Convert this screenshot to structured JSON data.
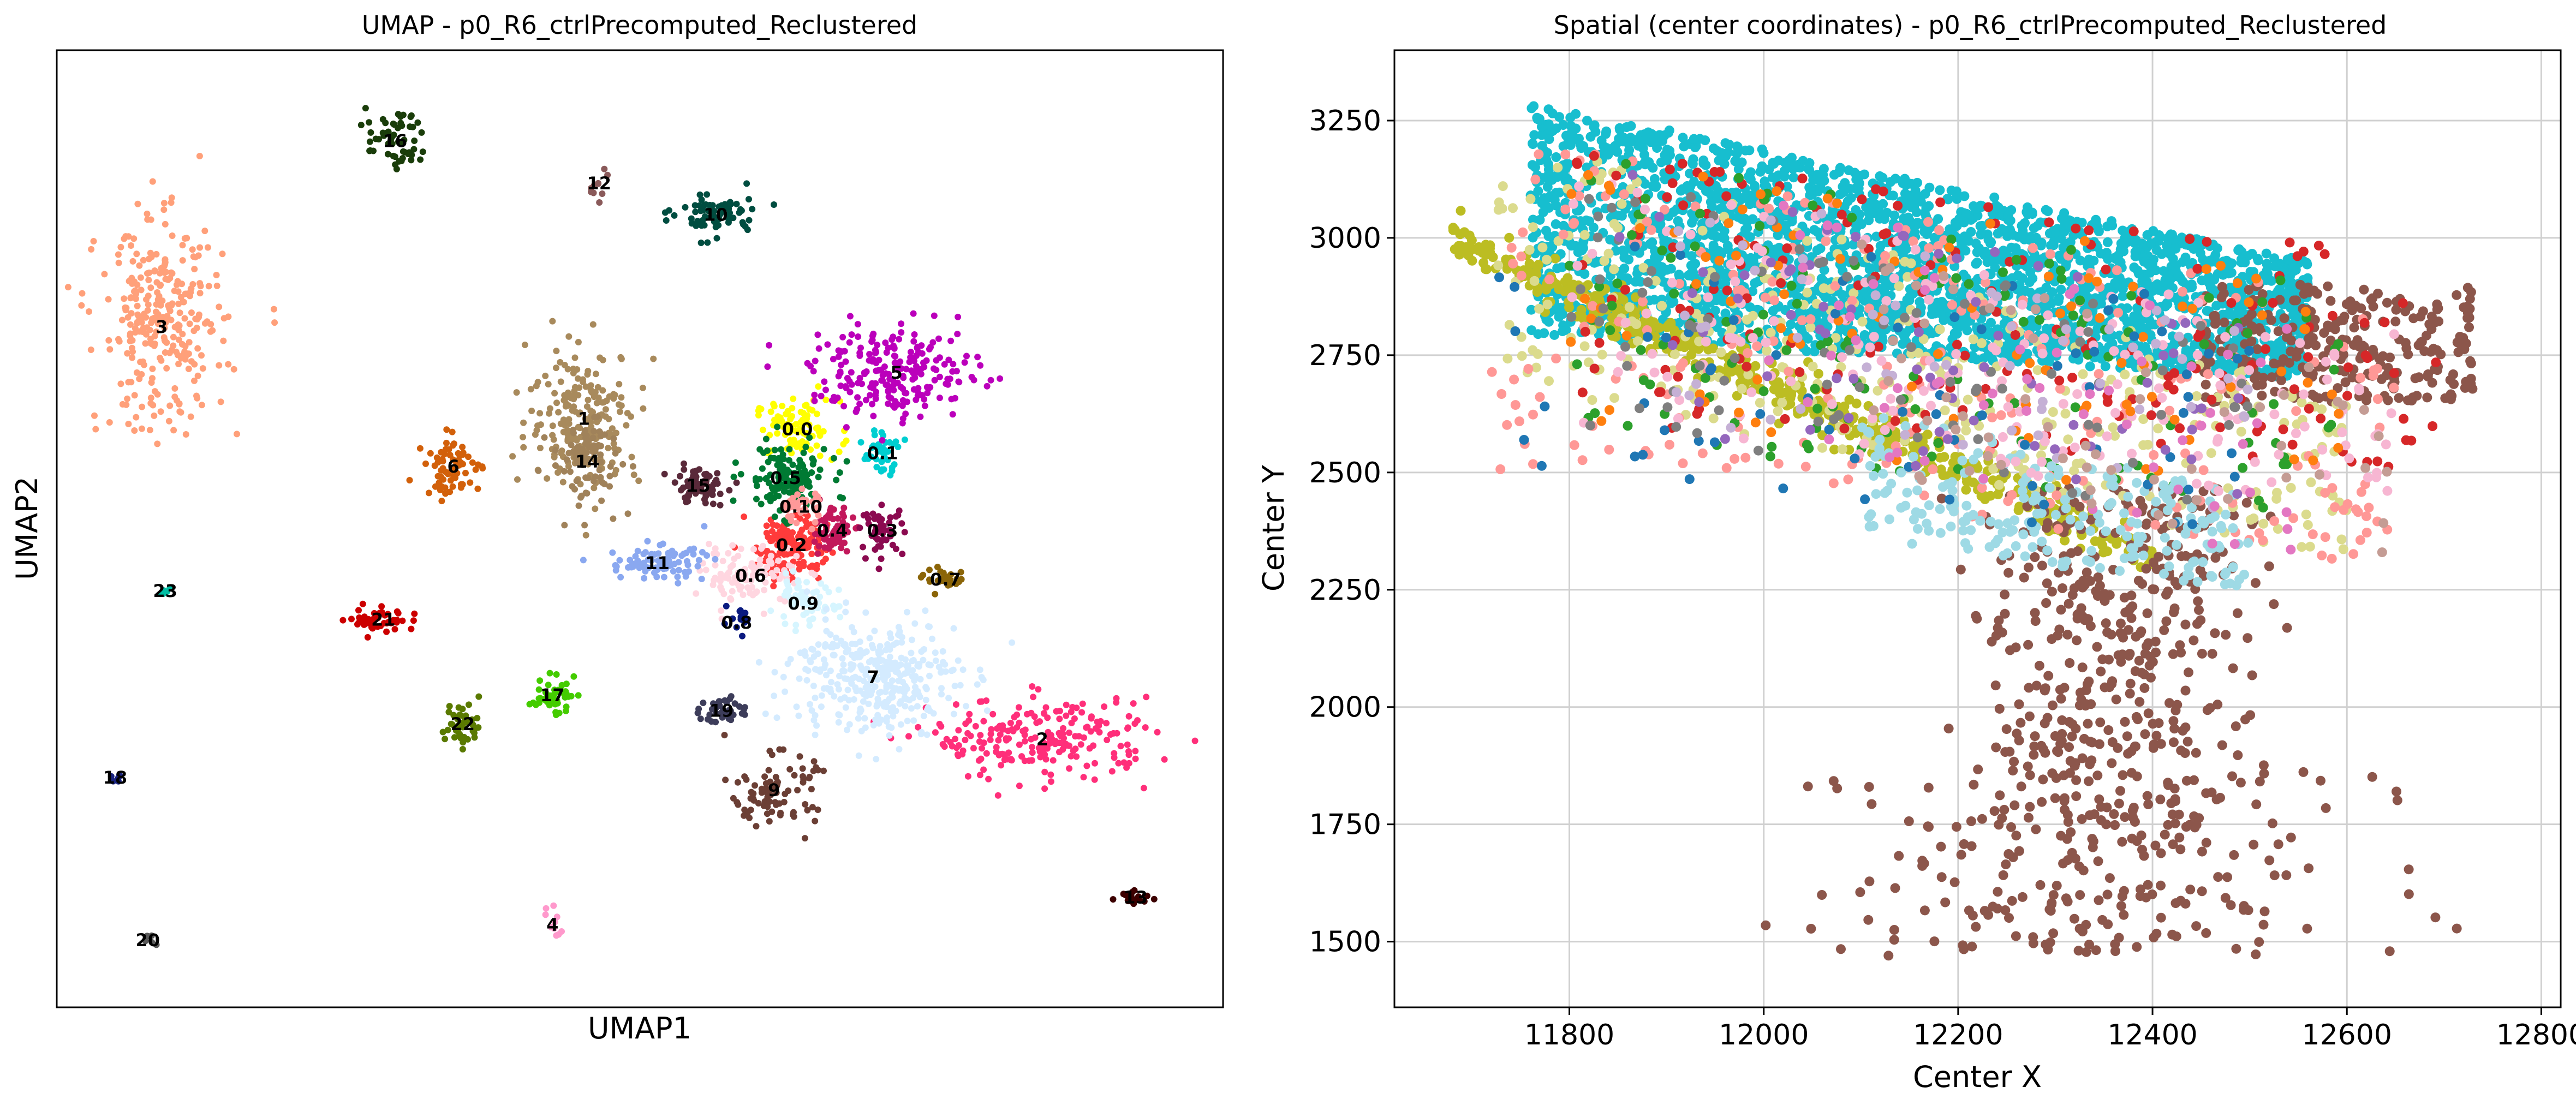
{
  "chart_data": [
    {
      "type": "scatter",
      "title": "UMAP - p0_R6_ctrlPrecomputed_Reclustered",
      "xlabel": "UMAP1",
      "ylabel": "UMAP2",
      "xlim": [
        0,
        100
      ],
      "ylim": [
        0,
        100
      ],
      "grid": false,
      "ticks_shown": false,
      "clusters": [
        {
          "label": "0.0",
          "color": "#ffff00",
          "center": [
            63.5,
            60.4
          ],
          "spread": [
            3.0,
            2.5
          ],
          "count": 90
        },
        {
          "label": "0.1",
          "color": "#00ced1",
          "center": [
            70.8,
            57.9
          ],
          "spread": [
            1.2,
            2.0
          ],
          "count": 40
        },
        {
          "label": "0.2",
          "color": "#ff3b3b",
          "center": [
            63.0,
            48.3
          ],
          "spread": [
            2.5,
            3.0
          ],
          "count": 150
        },
        {
          "label": "0.4",
          "color": "#c2185b",
          "center": [
            66.5,
            49.8
          ],
          "spread": [
            1.5,
            2.0
          ],
          "count": 60
        },
        {
          "label": "0.5",
          "color": "#007a33",
          "center": [
            62.5,
            55.3
          ],
          "spread": [
            3.0,
            3.0
          ],
          "count": 140
        },
        {
          "label": "0.6",
          "color": "#ffd6e0",
          "center": [
            59.5,
            45.1
          ],
          "spread": [
            3.5,
            2.5
          ],
          "count": 100
        },
        {
          "label": "0.7",
          "color": "#8b6508",
          "center": [
            76.2,
            44.7
          ],
          "spread": [
            1.5,
            1.0
          ],
          "count": 30
        },
        {
          "label": "0.8",
          "color": "#0a1a80",
          "center": [
            58.3,
            40.2
          ],
          "spread": [
            1.0,
            1.0
          ],
          "count": 15
        },
        {
          "label": "0.9",
          "color": "#d6f5ff",
          "center": [
            64.0,
            42.2
          ],
          "spread": [
            2.5,
            2.0
          ],
          "count": 60
        },
        {
          "label": "0.10",
          "color": "#ff9999",
          "center": [
            63.8,
            52.3
          ],
          "spread": [
            1.5,
            1.5
          ],
          "count": 40
        },
        {
          "label": "0.3",
          "color": "#8b0a50",
          "center": [
            70.8,
            49.8
          ],
          "spread": [
            1.5,
            2.0
          ],
          "count": 50
        },
        {
          "label": "1",
          "color": "#a88a5c",
          "center": [
            45.2,
            61.5
          ],
          "spread": [
            4.0,
            6.0
          ],
          "count": 220
        },
        {
          "label": "2",
          "color": "#ff2f7a",
          "center": [
            84.5,
            28.0
          ],
          "spread": [
            8.0,
            3.5
          ],
          "count": 220
        },
        {
          "label": "3",
          "color": "#ffa07a",
          "center": [
            9.0,
            71.1
          ],
          "spread": [
            4.5,
            9.0
          ],
          "count": 300
        },
        {
          "label": "4",
          "color": "#ff99cc",
          "center": [
            42.5,
            8.6
          ],
          "spread": [
            0.6,
            2.0
          ],
          "count": 10
        },
        {
          "label": "5",
          "color": "#bb00bb",
          "center": [
            72.0,
            66.3
          ],
          "spread": [
            6.0,
            4.0
          ],
          "count": 220
        },
        {
          "label": "6",
          "color": "#d2600a",
          "center": [
            34.0,
            56.5
          ],
          "spread": [
            2.0,
            2.5
          ],
          "count": 70
        },
        {
          "label": "7",
          "color": "#d4ebff",
          "center": [
            70.0,
            34.5
          ],
          "spread": [
            6.0,
            5.0
          ],
          "count": 350
        },
        {
          "label": "9",
          "color": "#6b3f35",
          "center": [
            61.5,
            22.7
          ],
          "spread": [
            3.0,
            3.0
          ],
          "count": 90
        },
        {
          "label": "10",
          "color": "#004d40",
          "center": [
            56.5,
            82.8
          ],
          "spread": [
            3.0,
            2.0
          ],
          "count": 70
        },
        {
          "label": "11",
          "color": "#8aa8f0",
          "center": [
            51.5,
            46.4
          ],
          "spread": [
            3.5,
            1.5
          ],
          "count": 90
        },
        {
          "label": "12",
          "color": "#8a5a5a",
          "center": [
            46.5,
            86.1
          ],
          "spread": [
            1.0,
            2.0
          ],
          "count": 10
        },
        {
          "label": "13",
          "color": "#3d0000",
          "center": [
            92.5,
            11.5
          ],
          "spread": [
            1.2,
            0.5
          ],
          "count": 20
        },
        {
          "label": "14",
          "color": "#a0825a",
          "center": [
            45.5,
            57.0
          ],
          "spread": [
            2.5,
            4.0
          ],
          "count": 80
        },
        {
          "label": "15",
          "color": "#5a2a3a",
          "center": [
            55.0,
            54.5
          ],
          "spread": [
            2.0,
            1.5
          ],
          "count": 70
        },
        {
          "label": "16",
          "color": "#1a3d0a",
          "center": [
            29.0,
            90.5
          ],
          "spread": [
            2.0,
            2.5
          ],
          "count": 60
        },
        {
          "label": "17",
          "color": "#44cc00",
          "center": [
            42.5,
            32.6
          ],
          "spread": [
            1.5,
            1.5
          ],
          "count": 45
        },
        {
          "label": "18",
          "color": "#1a237e",
          "center": [
            5.0,
            24.0
          ],
          "spread": [
            0.5,
            0.3
          ],
          "count": 6
        },
        {
          "label": "19",
          "color": "#3d3d5a",
          "center": [
            57.0,
            31.0
          ],
          "spread": [
            1.5,
            1.2
          ],
          "count": 40
        },
        {
          "label": "20",
          "color": "#5a5a5a",
          "center": [
            7.8,
            7.0
          ],
          "spread": [
            0.8,
            0.8
          ],
          "count": 5
        },
        {
          "label": "21",
          "color": "#cc0000",
          "center": [
            28.0,
            40.5
          ],
          "spread": [
            2.5,
            1.2
          ],
          "count": 45
        },
        {
          "label": "22",
          "color": "#5a7a00",
          "center": [
            34.8,
            29.6
          ],
          "spread": [
            1.2,
            2.0
          ],
          "count": 45
        },
        {
          "label": "23",
          "color": "#00bfa5",
          "center": [
            9.3,
            43.5
          ],
          "spread": [
            0.5,
            0.3
          ],
          "count": 6
        }
      ]
    },
    {
      "type": "scatter",
      "title": "Spatial (center coordinates) - p0_R6_ctrlPrecomputed_Reclustered",
      "xlabel": "Center X",
      "ylabel": "Center Y",
      "xlim": [
        11620,
        12820
      ],
      "ylim": [
        1360,
        3400
      ],
      "xticks": [
        11800,
        12000,
        12200,
        12400,
        12600,
        12800
      ],
      "yticks": [
        1500,
        1750,
        2000,
        2250,
        2500,
        2750,
        3000,
        3250
      ],
      "grid": true,
      "dominant_color": "#17becf",
      "regions": [
        {
          "color": "#17becf",
          "x_range": [
            11760,
            12560
          ],
          "y_top": [
            3290,
            2950
          ],
          "y_bottom": [
            2790,
            2700
          ],
          "count": 2600
        },
        {
          "color": "#bcbd22",
          "x_range": [
            11680,
            12400
          ],
          "y_top": [
            3000,
            2300
          ],
          "y_bottom": [
            2900,
            2250
          ],
          "count": 500
        },
        {
          "color": "#8c564b",
          "x_range": [
            12280,
            12720
          ],
          "y_top": [
            2600,
            1480
          ],
          "y_bottom": [
            2400,
            1460
          ],
          "count": 900
        },
        {
          "color": "#dbdb8d",
          "x_range": [
            11720,
            12600
          ],
          "y_top": [
            3250,
            2650
          ],
          "y_bottom": [
            2700,
            2300
          ],
          "count": 350
        },
        {
          "color": "#ff9896",
          "x_range": [
            11720,
            12650
          ],
          "y_top": [
            3250,
            2850
          ],
          "y_bottom": [
            2500,
            2300
          ],
          "count": 260
        },
        {
          "color": "#d62728",
          "x_range": [
            11800,
            12700
          ],
          "y_top": [
            3200,
            2950
          ],
          "y_bottom": [
            2600,
            2500
          ],
          "count": 180
        },
        {
          "color": "#2ca02c",
          "x_range": [
            11800,
            12600
          ],
          "y_top": [
            3200,
            2900
          ],
          "y_bottom": [
            2550,
            2400
          ],
          "count": 150
        },
        {
          "color": "#9edae5",
          "x_range": [
            12100,
            12500
          ],
          "y_top": [
            2650,
            2450
          ],
          "y_bottom": [
            2350,
            2250
          ],
          "count": 220
        },
        {
          "color": "#f7b6d2",
          "x_range": [
            11800,
            12650
          ],
          "y_top": [
            3150,
            2800
          ],
          "y_bottom": [
            2600,
            2400
          ],
          "count": 200
        },
        {
          "color": "#ff7f0e",
          "x_range": [
            11800,
            12600
          ],
          "y_top": [
            3200,
            2900
          ],
          "y_bottom": [
            2600,
            2400
          ],
          "count": 100
        },
        {
          "color": "#1f77b4",
          "x_range": [
            11700,
            12500
          ],
          "y_top": [
            3100,
            2850
          ],
          "y_bottom": [
            2500,
            2350
          ],
          "count": 70
        },
        {
          "color": "#7f7f7f",
          "x_range": [
            11800,
            12500
          ],
          "y_top": [
            3150,
            2800
          ],
          "y_bottom": [
            2600,
            2400
          ],
          "count": 90
        },
        {
          "color": "#9467bd",
          "x_range": [
            11850,
            12500
          ],
          "y_top": [
            3150,
            2850
          ],
          "y_bottom": [
            2600,
            2400
          ],
          "count": 70
        },
        {
          "color": "#c5b0d5",
          "x_range": [
            11900,
            12500
          ],
          "y_top": [
            3150,
            2800
          ],
          "y_bottom": [
            2600,
            2400
          ],
          "count": 60
        },
        {
          "color": "#e377c2",
          "x_range": [
            12000,
            12550
          ],
          "y_top": [
            3100,
            2800
          ],
          "y_bottom": [
            2600,
            2300
          ],
          "count": 60
        },
        {
          "color": "#c49c94",
          "x_range": [
            12100,
            12650
          ],
          "y_top": [
            3000,
            2700
          ],
          "y_bottom": [
            2500,
            2300
          ],
          "count": 60
        }
      ]
    }
  ]
}
